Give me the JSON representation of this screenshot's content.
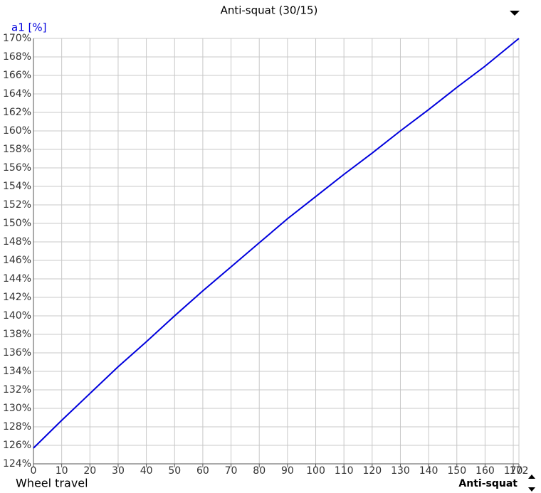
{
  "chart_data": {
    "type": "line",
    "title": "Anti-squat (30/15)",
    "y_label": "a1 [%]",
    "x_label": "Wheel travel",
    "selector_label": "Anti-squat",
    "x": [
      0,
      10,
      20,
      30,
      40,
      50,
      60,
      70,
      80,
      90,
      100,
      110,
      120,
      130,
      140,
      150,
      160,
      170,
      172
    ],
    "series": [
      {
        "color": "#0000dd",
        "values": [
          125.7,
          128.7,
          131.6,
          134.5,
          137.2,
          140.0,
          142.7,
          145.3,
          147.9,
          150.5,
          152.9,
          155.3,
          157.6,
          160.0,
          162.3,
          164.7,
          167.0,
          169.5,
          170.0
        ]
      }
    ],
    "xlim": [
      0,
      172
    ],
    "xticks": [
      0,
      10,
      20,
      30,
      40,
      50,
      60,
      70,
      80,
      90,
      100,
      110,
      120,
      130,
      140,
      150,
      160,
      170,
      172
    ],
    "ylim": [
      124,
      170
    ],
    "yticks": [
      {
        "value": 124,
        "label": "124%"
      },
      {
        "value": 126,
        "label": "126%"
      },
      {
        "value": 128,
        "label": "128%"
      },
      {
        "value": 130,
        "label": "130%"
      },
      {
        "value": 132,
        "label": "132%"
      },
      {
        "value": 134,
        "label": "134%"
      },
      {
        "value": 136,
        "label": "136%"
      },
      {
        "value": 138,
        "label": "138%"
      },
      {
        "value": 140,
        "label": "140%"
      },
      {
        "value": 142,
        "label": "142%"
      },
      {
        "value": 144,
        "label": "144%"
      },
      {
        "value": 146,
        "label": "146%"
      },
      {
        "value": 148,
        "label": "148%"
      },
      {
        "value": 150,
        "label": "150%"
      },
      {
        "value": 152,
        "label": "152%"
      },
      {
        "value": 154,
        "label": "154%"
      },
      {
        "value": 156,
        "label": "156%"
      },
      {
        "value": 158,
        "label": "158%"
      },
      {
        "value": 160,
        "label": "160%"
      },
      {
        "value": 162,
        "label": "162%"
      },
      {
        "value": 164,
        "label": "164%"
      },
      {
        "value": 166,
        "label": "166%"
      },
      {
        "value": 168,
        "label": "168%"
      },
      {
        "value": 170,
        "label": "170%"
      }
    ],
    "grid": true
  }
}
